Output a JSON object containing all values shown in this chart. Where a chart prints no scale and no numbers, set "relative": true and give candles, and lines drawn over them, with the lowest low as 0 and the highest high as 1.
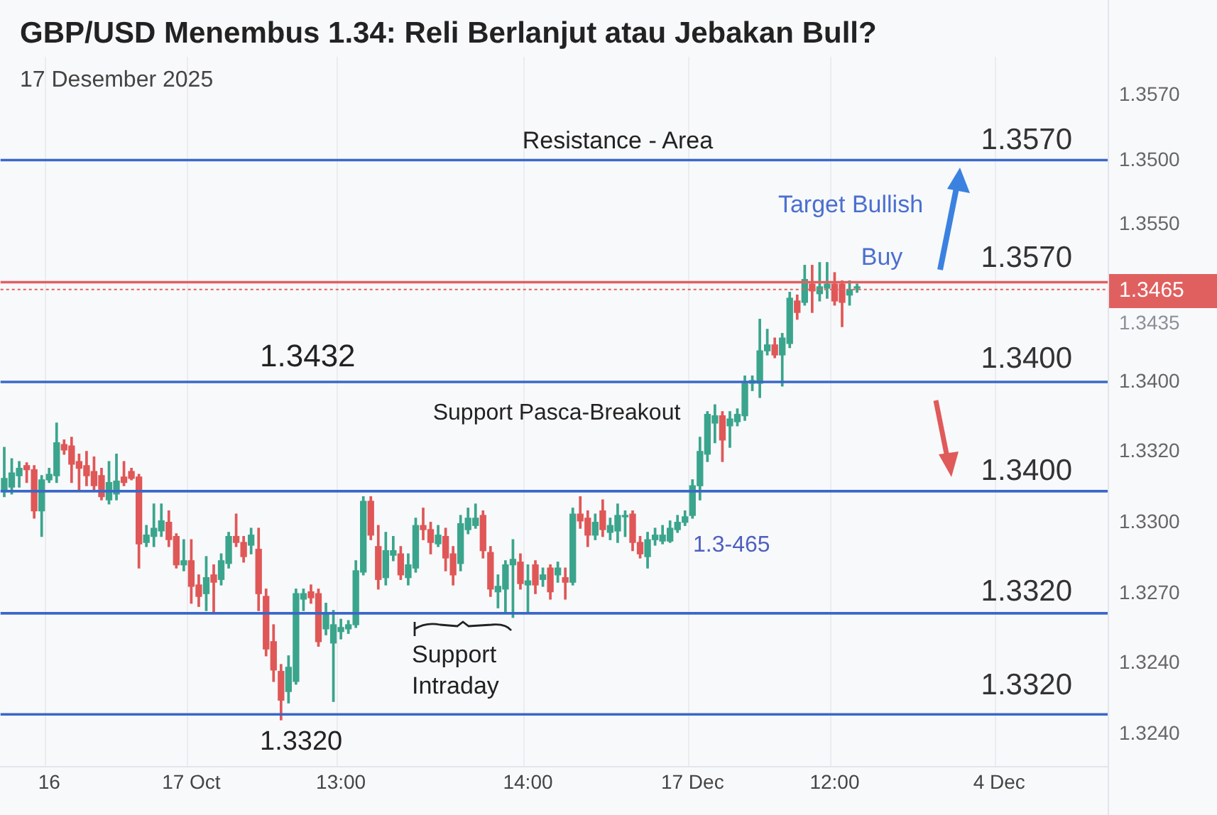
{
  "chart_data": {
    "type": "candlestick",
    "title": "GBP/USD Menembus 1.34: Reli Berlanjut atau Jebakan Bull?",
    "subtitle": "17 Desember 2025",
    "relative": true,
    "categories": [
      null,
      null,
      null,
      null,
      null,
      null,
      "16",
      null,
      null,
      null,
      null,
      null,
      null,
      null,
      null,
      null,
      null,
      null,
      null,
      null,
      null,
      null,
      null,
      null,
      null,
      "17 Oct",
      null,
      null,
      null,
      null,
      null,
      null,
      null,
      null,
      null,
      null,
      null,
      null,
      null,
      null,
      null,
      null,
      null,
      null,
      null,
      "13:00",
      null,
      null,
      null,
      null,
      null,
      null,
      null,
      null,
      null,
      null,
      null,
      null,
      null,
      null,
      null,
      null,
      null,
      null,
      null,
      null,
      null,
      null,
      null,
      null,
      "14:00",
      null,
      null,
      null,
      null,
      null,
      null,
      null,
      null,
      null,
      null,
      null,
      null,
      null,
      null,
      null,
      null,
      null,
      null,
      null,
      null,
      null,
      "17 Dec",
      null,
      null,
      null,
      null,
      null,
      null,
      null,
      null,
      null,
      null,
      null,
      null,
      null,
      null,
      null,
      null,
      null,
      null,
      "12:00",
      null,
      null,
      null,
      null,
      null,
      null,
      null,
      null,
      null,
      null,
      null,
      null,
      null,
      null,
      null,
      null,
      null,
      null,
      null,
      null,
      null,
      "4 Dec",
      null,
      null,
      null,
      null,
      null,
      null,
      null,
      null,
      null,
      null,
      null,
      null,
      null,
      null
    ],
    "ohlc": [
      [
        0.503,
        0.596,
        0.488,
        0.528
      ],
      [
        0.509,
        0.571,
        0.494,
        0.54
      ],
      [
        0.534,
        0.565,
        0.509,
        0.55
      ],
      [
        0.556,
        0.562,
        0.519,
        0.547
      ],
      [
        0.547,
        0.556,
        0.441,
        0.457
      ],
      [
        0.457,
        0.534,
        0.401,
        0.525
      ],
      [
        0.525,
        0.55,
        0.519,
        0.537
      ],
      [
        0.534,
        0.649,
        0.519,
        0.606
      ],
      [
        0.602,
        0.612,
        0.581,
        0.59
      ],
      [
        0.599,
        0.618,
        0.519,
        0.559
      ],
      [
        0.565,
        0.581,
        0.503,
        0.55
      ],
      [
        0.556,
        0.587,
        0.512,
        0.534
      ],
      [
        0.543,
        0.575,
        0.503,
        0.512
      ],
      [
        0.534,
        0.55,
        0.481,
        0.488
      ],
      [
        0.481,
        0.565,
        0.472,
        0.519
      ],
      [
        0.494,
        0.581,
        0.481,
        0.522
      ],
      [
        0.531,
        0.565,
        0.512,
        0.519
      ],
      [
        0.543,
        0.55,
        0.525,
        0.528
      ],
      [
        0.531,
        0.537,
        0.332,
        0.385
      ],
      [
        0.388,
        0.425,
        0.379,
        0.404
      ],
      [
        0.401,
        0.472,
        0.379,
        0.419
      ],
      [
        0.413,
        0.472,
        0.401,
        0.435
      ],
      [
        0.432,
        0.457,
        0.379,
        0.394
      ],
      [
        0.401,
        0.407,
        0.332,
        0.339
      ],
      [
        0.339,
        0.394,
        0.326,
        0.348
      ],
      [
        0.348,
        0.394,
        0.255,
        0.292
      ],
      [
        0.295,
        0.317,
        0.248,
        0.27
      ],
      [
        0.276,
        0.357,
        0.239,
        0.311
      ],
      [
        0.317,
        0.339,
        0.233,
        0.301
      ],
      [
        0.307,
        0.363,
        0.295,
        0.348
      ],
      [
        0.342,
        0.41,
        0.332,
        0.401
      ],
      [
        0.401,
        0.45,
        0.379,
        0.388
      ],
      [
        0.388,
        0.401,
        0.345,
        0.357
      ],
      [
        0.382,
        0.419,
        0.363,
        0.404
      ],
      [
        0.373,
        0.419,
        0.239,
        0.276
      ],
      [
        0.27,
        0.286,
        0.14,
        0.155
      ],
      [
        0.171,
        0.208,
        0.084,
        0.109
      ],
      [
        0.106,
        0.121,
        0,
        0.043
      ],
      [
        0.062,
        0.14,
        0.037,
        0.115
      ],
      [
        0.084,
        0.286,
        0.078,
        0.276
      ],
      [
        0.264,
        0.286,
        0.239,
        0.276
      ],
      [
        0.28,
        0.295,
        0.255,
        0.267
      ],
      [
        0.276,
        0.286,
        0.161,
        0.171
      ],
      [
        0.199,
        0.255,
        0.186,
        0.233
      ],
      [
        0.168,
        0.239,
        0.04,
        0.208
      ],
      [
        0.193,
        0.22,
        0.177,
        0.202
      ],
      [
        0.199,
        0.217,
        0.189,
        0.208
      ],
      [
        0.208,
        0.348,
        0.202,
        0.326
      ],
      [
        0.323,
        0.488,
        0.317,
        0.478
      ],
      [
        0.478,
        0.488,
        0.394,
        0.404
      ],
      [
        0.379,
        0.425,
        0.286,
        0.307
      ],
      [
        0.311,
        0.41,
        0.295,
        0.37
      ],
      [
        0.36,
        0.401,
        0.348,
        0.37
      ],
      [
        0.363,
        0.379,
        0.307,
        0.317
      ],
      [
        0.311,
        0.363,
        0.295,
        0.339
      ],
      [
        0.332,
        0.441,
        0.323,
        0.425
      ],
      [
        0.425,
        0.463,
        0.394,
        0.416
      ],
      [
        0.416,
        0.432,
        0.363,
        0.388
      ],
      [
        0.385,
        0.425,
        0.379,
        0.404
      ],
      [
        0.401,
        0.419,
        0.326,
        0.354
      ],
      [
        0.363,
        0.379,
        0.295,
        0.317
      ],
      [
        0.342,
        0.447,
        0.326,
        0.429
      ],
      [
        0.416,
        0.463,
        0.407,
        0.441
      ],
      [
        0.425,
        0.472,
        0.419,
        0.441
      ],
      [
        0.447,
        0.457,
        0.354,
        0.37
      ],
      [
        0.366,
        0.379,
        0.27,
        0.286
      ],
      [
        0.28,
        0.317,
        0.245,
        0.292
      ],
      [
        0.286,
        0.348,
        0.233,
        0.339
      ],
      [
        0.339,
        0.394,
        0.224,
        0.351
      ],
      [
        0.345,
        0.363,
        0.286,
        0.298
      ],
      [
        0.295,
        0.339,
        0.233,
        0.304
      ],
      [
        0.339,
        0.348,
        0.276,
        0.295
      ],
      [
        0.307,
        0.332,
        0.292,
        0.317
      ],
      [
        0.332,
        0.339,
        0.264,
        0.28
      ],
      [
        0.317,
        0.345,
        0.301,
        0.332
      ],
      [
        0.311,
        0.332,
        0.264,
        0.301
      ],
      [
        0.301,
        0.463,
        0.295,
        0.45
      ],
      [
        0.45,
        0.488,
        0.419,
        0.435
      ],
      [
        0.441,
        0.457,
        0.379,
        0.404
      ],
      [
        0.404,
        0.45,
        0.394,
        0.432
      ],
      [
        0.457,
        0.481,
        0.401,
        0.416
      ],
      [
        0.41,
        0.441,
        0.394,
        0.425
      ],
      [
        0.413,
        0.472,
        0.388,
        0.447
      ],
      [
        0.444,
        0.457,
        0.401,
        0.447
      ],
      [
        0.45,
        0.457,
        0.37,
        0.388
      ],
      [
        0.388,
        0.401,
        0.354,
        0.363
      ],
      [
        0.357,
        0.41,
        0.332,
        0.394
      ],
      [
        0.394,
        0.419,
        0.382,
        0.404
      ],
      [
        0.391,
        0.425,
        0.385,
        0.404
      ],
      [
        0.391,
        0.435,
        0.388,
        0.419
      ],
      [
        0.416,
        0.447,
        0.41,
        0.432
      ],
      [
        0.432,
        0.457,
        0.425,
        0.444
      ],
      [
        0.447,
        0.525,
        0.441,
        0.512
      ],
      [
        0.512,
        0.618,
        0.481,
        0.587
      ],
      [
        0.581,
        0.674,
        0.565,
        0.668
      ],
      [
        0.649,
        0.689,
        0.606,
        0.665
      ],
      [
        0.665,
        0.674,
        0.565,
        0.612
      ],
      [
        0.643,
        0.674,
        0.596,
        0.658
      ],
      [
        0.652,
        0.68,
        0.643,
        0.668
      ],
      [
        0.665,
        0.752,
        0.655,
        0.736
      ],
      [
        0.736,
        0.752,
        0.72,
        0.742
      ],
      [
        0.736,
        0.876,
        0.705,
        0.807
      ],
      [
        0.807,
        0.854,
        0.798,
        0.82
      ],
      [
        0.82,
        0.835,
        0.792,
        0.798
      ],
      [
        0.798,
        0.845,
        0.73,
        0.835
      ],
      [
        0.823,
        0.935,
        0.814,
        0.922
      ],
      [
        0.916,
        0.929,
        0.876,
        0.891
      ],
      [
        0.913,
        0.994,
        0.907,
        0.963
      ],
      [
        0.953,
        0.994,
        0.891,
        0.938
      ],
      [
        0.932,
        1,
        0.916,
        0.947
      ],
      [
        0.944,
        1,
        0.922,
        0.953
      ],
      [
        0.953,
        0.978,
        0.907,
        0.916
      ],
      [
        0.953,
        0.96,
        0.86,
        0.913
      ],
      [
        0.929,
        0.96,
        0.907,
        0.941
      ],
      [
        0.944,
        0.953,
        0.935,
        0.947
      ],
      null,
      null,
      null,
      null,
      null,
      null,
      null,
      null,
      null,
      null,
      null,
      null,
      null,
      null,
      null,
      null,
      null,
      null,
      null,
      null,
      null,
      null,
      null,
      null,
      null,
      null,
      null,
      null,
      null,
      null,
      null,
      null,
      null
    ],
    "ref_lines": [
      {
        "axis": "y",
        "value": 1.224,
        "color": "#3a67c9"
      },
      {
        "axis": "y",
        "value": 0.957,
        "color": "#e06060"
      },
      {
        "axis": "y",
        "value": 0.941,
        "color": "#e06060",
        "line_style": "dotted"
      },
      {
        "axis": "y",
        "value": 0.739,
        "color": "#3a67c9"
      },
      {
        "axis": "y",
        "value": 0.5,
        "color": "#3a67c9"
      },
      {
        "axis": "y",
        "value": 0.233,
        "color": "#3a67c9"
      },
      {
        "axis": "y",
        "value": 0.012,
        "color": "#3a67c9"
      }
    ],
    "annotations": [
      "Resistance - Area",
      "Target Bullish",
      "Buy",
      "1.3432",
      "Support Pasca-Breakout",
      "1.3-465",
      "Support Intraday",
      "1.3320",
      "1.3570",
      "1.3570",
      "1.3400",
      "1.3400",
      "1.3320",
      "1.3320",
      "1.3570",
      "1.3500",
      "1.3550",
      "1.3465",
      "1.3435",
      "1.3400",
      "1.3320",
      "1.3300",
      "1.3270",
      "1.3240",
      "1.3240"
    ],
    "grid": "x"
  }
}
